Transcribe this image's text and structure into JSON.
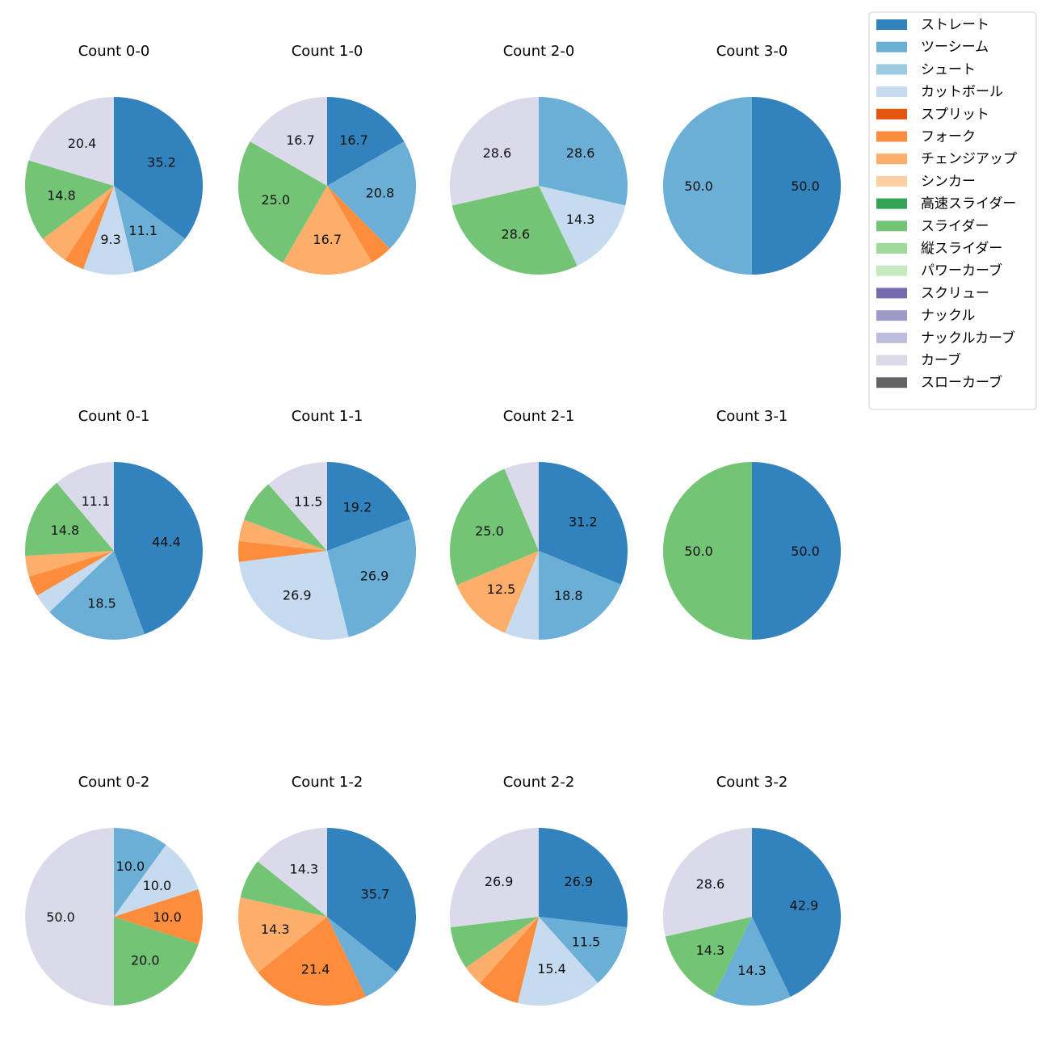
{
  "chart_data": {
    "type": "pie",
    "legend": {
      "placement": "top-right",
      "entries": [
        {
          "name": "ストレート",
          "color": "#3182bd"
        },
        {
          "name": "ツーシーム",
          "color": "#6baed6"
        },
        {
          "name": "シュート",
          "color": "#9ecae1"
        },
        {
          "name": "カットボール",
          "color": "#c6dbef"
        },
        {
          "name": "スプリット",
          "color": "#e6550d"
        },
        {
          "name": "フォーク",
          "color": "#fd8d3c"
        },
        {
          "name": "チェンジアップ",
          "color": "#fdae6b"
        },
        {
          "name": "シンカー",
          "color": "#fdd0a2"
        },
        {
          "name": "高速スライダー",
          "color": "#31a354"
        },
        {
          "name": "スライダー",
          "color": "#74c476"
        },
        {
          "name": "縦スライダー",
          "color": "#a1d99b"
        },
        {
          "name": "パワーカーブ",
          "color": "#c7e9c0"
        },
        {
          "name": "スクリュー",
          "color": "#756bb1"
        },
        {
          "name": "ナックル",
          "color": "#9e9ac8"
        },
        {
          "name": "ナックルカーブ",
          "color": "#bcbddc"
        },
        {
          "name": "カーブ",
          "color": "#dadaeb"
        },
        {
          "name": "スローカーブ",
          "color": "#636363"
        }
      ]
    },
    "charts": [
      {
        "title": "Count 0-0",
        "slices": [
          {
            "pitch": "ストレート",
            "value": 35.2,
            "label": "35.2"
          },
          {
            "pitch": "ツーシーム",
            "value": 11.1,
            "label": "11.1"
          },
          {
            "pitch": "カットボール",
            "value": 9.3,
            "label": "9.3"
          },
          {
            "pitch": "フォーク",
            "value": 3.7,
            "label": ""
          },
          {
            "pitch": "チェンジアップ",
            "value": 5.5,
            "label": ""
          },
          {
            "pitch": "スライダー",
            "value": 14.8,
            "label": "14.8"
          },
          {
            "pitch": "カーブ",
            "value": 20.4,
            "label": "20.4"
          }
        ]
      },
      {
        "title": "Count 1-0",
        "slices": [
          {
            "pitch": "ストレート",
            "value": 16.7,
            "label": "16.7"
          },
          {
            "pitch": "ツーシーム",
            "value": 20.8,
            "label": "20.8"
          },
          {
            "pitch": "フォーク",
            "value": 4.1,
            "label": ""
          },
          {
            "pitch": "チェンジアップ",
            "value": 16.7,
            "label": "16.7"
          },
          {
            "pitch": "スライダー",
            "value": 25.0,
            "label": "25.0"
          },
          {
            "pitch": "カーブ",
            "value": 16.7,
            "label": "16.7"
          }
        ]
      },
      {
        "title": "Count 2-0",
        "slices": [
          {
            "pitch": "ツーシーム",
            "value": 28.6,
            "label": "28.6"
          },
          {
            "pitch": "カットボール",
            "value": 14.3,
            "label": "14.3"
          },
          {
            "pitch": "スライダー",
            "value": 28.6,
            "label": "28.6"
          },
          {
            "pitch": "カーブ",
            "value": 28.6,
            "label": "28.6"
          }
        ]
      },
      {
        "title": "Count 3-0",
        "slices": [
          {
            "pitch": "ストレート",
            "value": 50.0,
            "label": "50.0"
          },
          {
            "pitch": "ツーシーム",
            "value": 50.0,
            "label": "50.0"
          }
        ]
      },
      {
        "title": "Count 0-1",
        "slices": [
          {
            "pitch": "ストレート",
            "value": 44.4,
            "label": "44.4"
          },
          {
            "pitch": "ツーシーム",
            "value": 18.5,
            "label": "18.5"
          },
          {
            "pitch": "カットボール",
            "value": 3.7,
            "label": ""
          },
          {
            "pitch": "フォーク",
            "value": 3.7,
            "label": ""
          },
          {
            "pitch": "チェンジアップ",
            "value": 3.8,
            "label": ""
          },
          {
            "pitch": "スライダー",
            "value": 14.8,
            "label": "14.8"
          },
          {
            "pitch": "カーブ",
            "value": 11.1,
            "label": "11.1"
          }
        ]
      },
      {
        "title": "Count 1-1",
        "slices": [
          {
            "pitch": "ストレート",
            "value": 19.2,
            "label": "19.2"
          },
          {
            "pitch": "ツーシーム",
            "value": 26.9,
            "label": "26.9"
          },
          {
            "pitch": "カットボール",
            "value": 26.9,
            "label": "26.9"
          },
          {
            "pitch": "フォーク",
            "value": 3.8,
            "label": ""
          },
          {
            "pitch": "チェンジアップ",
            "value": 3.9,
            "label": ""
          },
          {
            "pitch": "スライダー",
            "value": 7.8,
            "label": ""
          },
          {
            "pitch": "カーブ",
            "value": 11.5,
            "label": "11.5"
          }
        ]
      },
      {
        "title": "Count 2-1",
        "slices": [
          {
            "pitch": "ストレート",
            "value": 31.2,
            "label": "31.2"
          },
          {
            "pitch": "ツーシーム",
            "value": 18.8,
            "label": "18.8"
          },
          {
            "pitch": "カットボール",
            "value": 6.2,
            "label": ""
          },
          {
            "pitch": "チェンジアップ",
            "value": 12.5,
            "label": "12.5"
          },
          {
            "pitch": "スライダー",
            "value": 25.0,
            "label": "25.0"
          },
          {
            "pitch": "カーブ",
            "value": 6.3,
            "label": ""
          }
        ]
      },
      {
        "title": "Count 3-1",
        "slices": [
          {
            "pitch": "ストレート",
            "value": 50.0,
            "label": "50.0"
          },
          {
            "pitch": "スライダー",
            "value": 50.0,
            "label": "50.0"
          }
        ]
      },
      {
        "title": "Count 0-2",
        "slices": [
          {
            "pitch": "ツーシーム",
            "value": 10.0,
            "label": "10.0"
          },
          {
            "pitch": "カットボール",
            "value": 10.0,
            "label": "10.0"
          },
          {
            "pitch": "フォーク",
            "value": 10.0,
            "label": "10.0"
          },
          {
            "pitch": "スライダー",
            "value": 20.0,
            "label": "20.0"
          },
          {
            "pitch": "カーブ",
            "value": 50.0,
            "label": "50.0"
          }
        ]
      },
      {
        "title": "Count 1-2",
        "slices": [
          {
            "pitch": "ストレート",
            "value": 35.7,
            "label": "35.7"
          },
          {
            "pitch": "ツーシーム",
            "value": 7.1,
            "label": ""
          },
          {
            "pitch": "フォーク",
            "value": 21.4,
            "label": "21.4"
          },
          {
            "pitch": "チェンジアップ",
            "value": 14.3,
            "label": "14.3"
          },
          {
            "pitch": "スライダー",
            "value": 7.2,
            "label": ""
          },
          {
            "pitch": "カーブ",
            "value": 14.3,
            "label": "14.3"
          }
        ]
      },
      {
        "title": "Count 2-2",
        "slices": [
          {
            "pitch": "ストレート",
            "value": 26.9,
            "label": "26.9"
          },
          {
            "pitch": "ツーシーム",
            "value": 11.5,
            "label": "11.5"
          },
          {
            "pitch": "カットボール",
            "value": 15.4,
            "label": "15.4"
          },
          {
            "pitch": "フォーク",
            "value": 7.7,
            "label": ""
          },
          {
            "pitch": "チェンジアップ",
            "value": 3.8,
            "label": ""
          },
          {
            "pitch": "スライダー",
            "value": 7.8,
            "label": ""
          },
          {
            "pitch": "カーブ",
            "value": 26.9,
            "label": "26.9"
          }
        ]
      },
      {
        "title": "Count 3-2",
        "slices": [
          {
            "pitch": "ストレート",
            "value": 42.9,
            "label": "42.9"
          },
          {
            "pitch": "ツーシーム",
            "value": 14.3,
            "label": "14.3"
          },
          {
            "pitch": "スライダー",
            "value": 14.3,
            "label": "14.3"
          },
          {
            "pitch": "カーブ",
            "value": 28.6,
            "label": "28.6"
          }
        ]
      }
    ]
  }
}
